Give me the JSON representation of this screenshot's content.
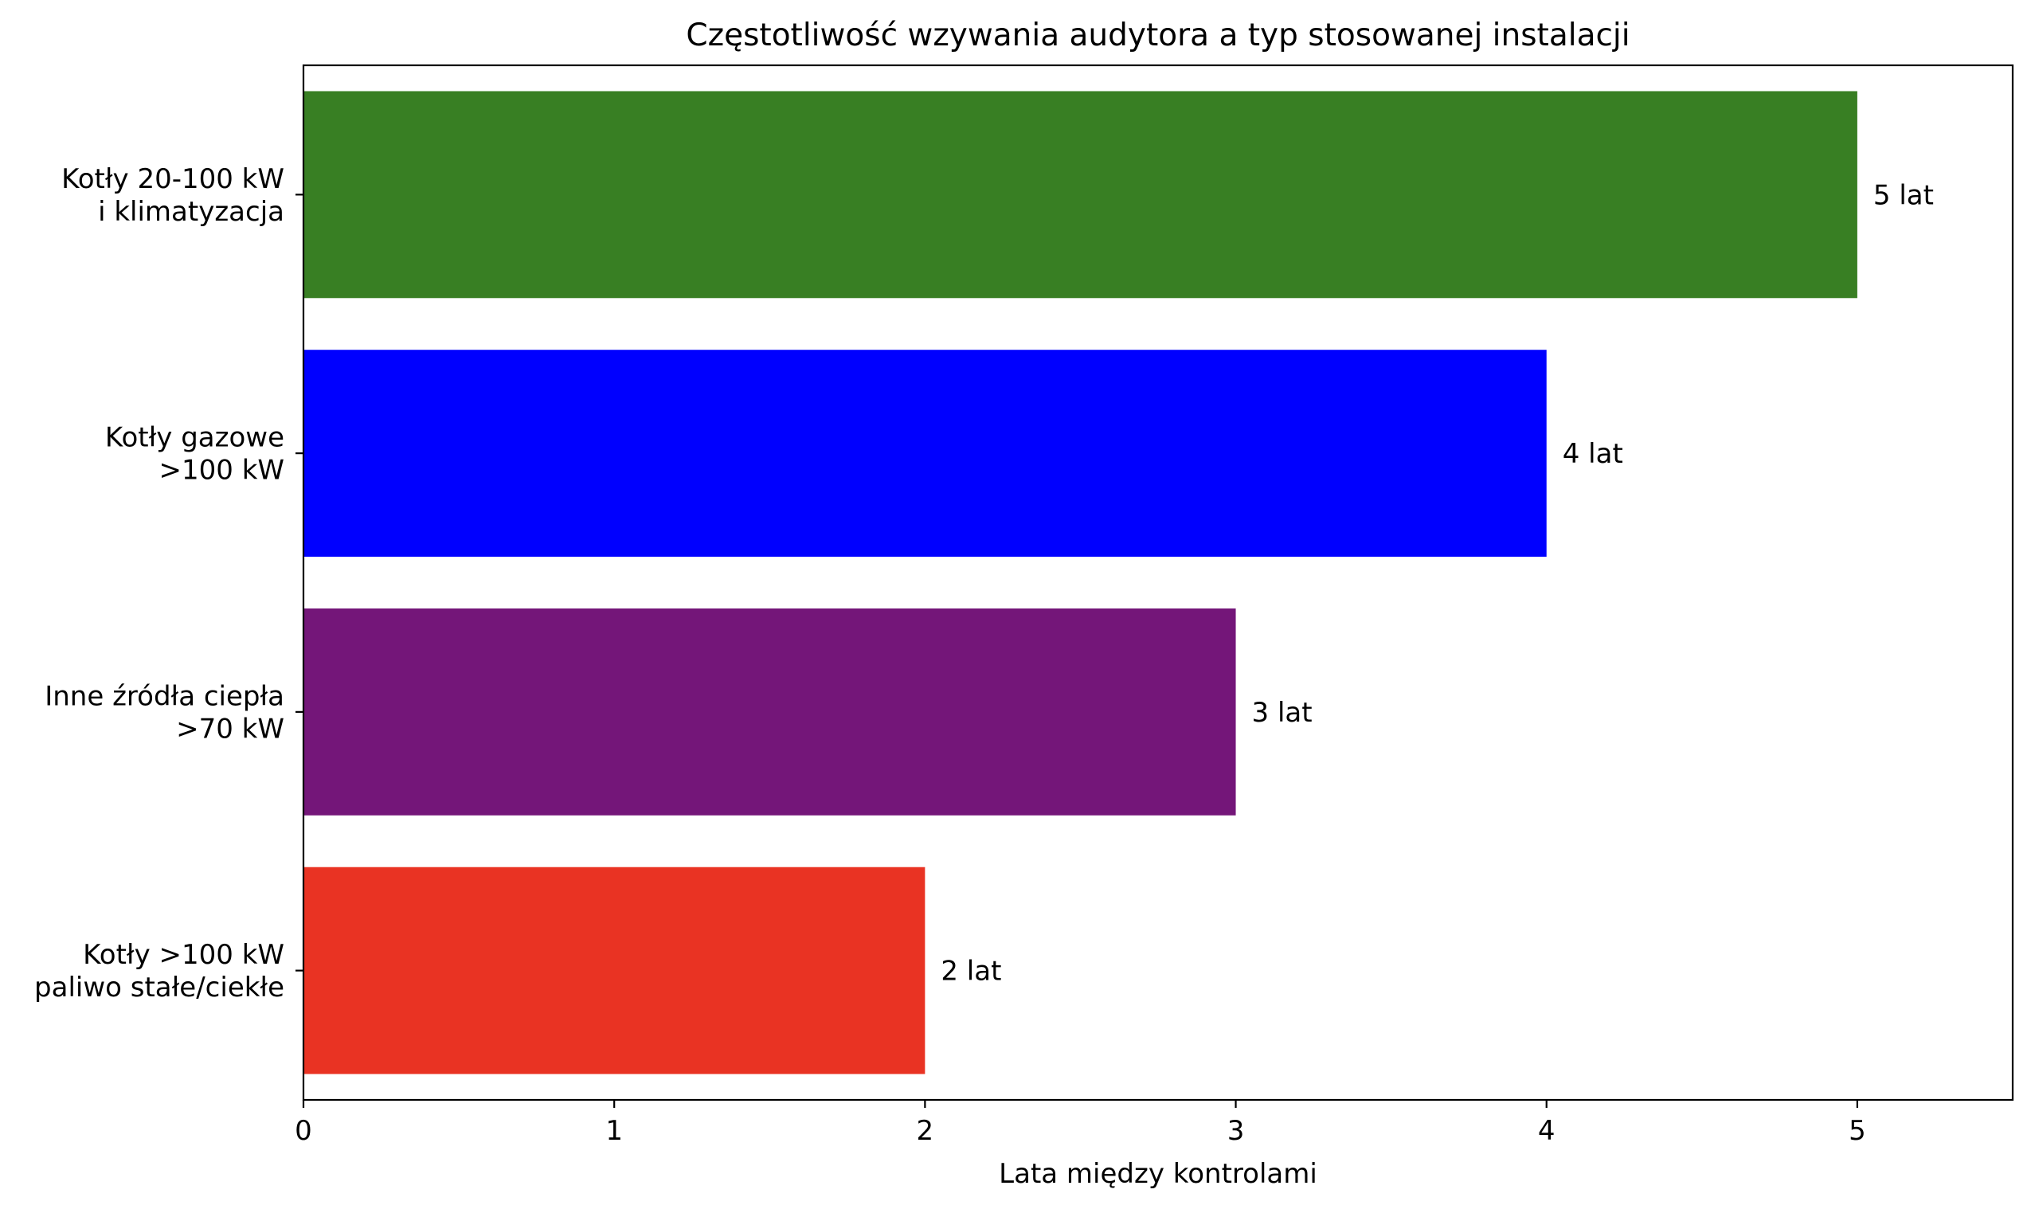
{
  "chart_data": {
    "type": "bar",
    "orientation": "horizontal",
    "title": "Częstotliwość wzywania audytora a typ stosowanej instalacji",
    "xlabel": "Lata między kontrolami",
    "ylabel": "",
    "xlim": [
      0,
      5.5
    ],
    "xticks": [
      "0",
      "1",
      "2",
      "3",
      "4",
      "5"
    ],
    "grid": false,
    "categories": [
      [
        "Kotły 20-100 kW",
        "i klimatyzacja"
      ],
      [
        "Kotły gazowe",
        ">100 kW"
      ],
      [
        "Inne źródła ciepła",
        ">70 kW"
      ],
      [
        "Kotły >100 kW",
        "paliwo stałe/ciekłe"
      ]
    ],
    "values": [
      5,
      4,
      3,
      2
    ],
    "data_labels": [
      "5 lat",
      "4 lat",
      "3 lat",
      "2 lat"
    ],
    "colors": [
      "#387f23",
      "#0000ff",
      "#741679",
      "#e93323"
    ]
  }
}
